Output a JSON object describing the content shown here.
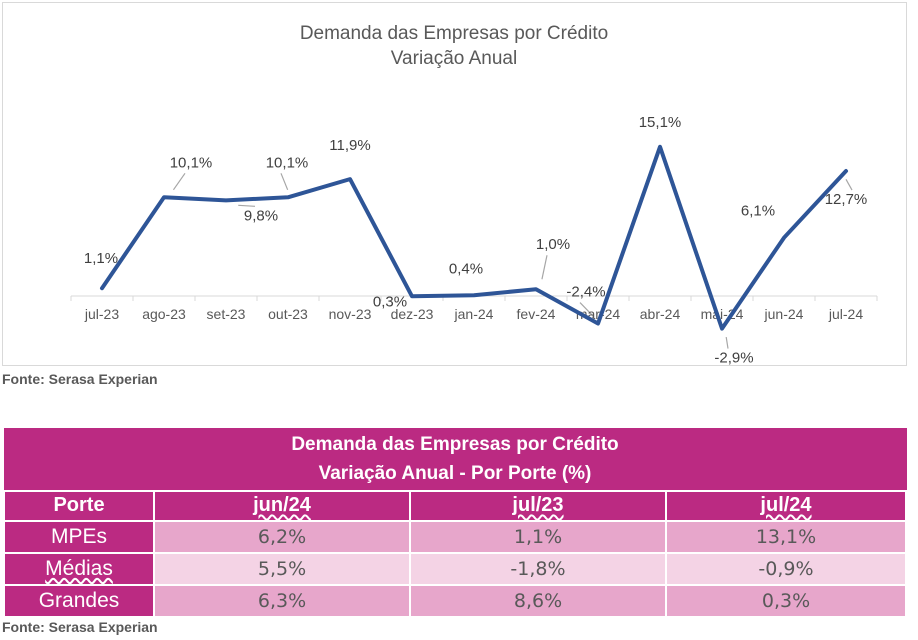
{
  "chart_data": {
    "type": "line",
    "title": "Demanda das Empresas por Crédito",
    "subtitle": "Variação Anual",
    "categories": [
      "jul-23",
      "ago-23",
      "set-23",
      "out-23",
      "nov-23",
      "dez-23",
      "jan-24",
      "fev-24",
      "mar-24",
      "abr-24",
      "mai-24",
      "jun-24",
      "jul-24"
    ],
    "values": [
      1.1,
      10.1,
      9.8,
      10.1,
      11.9,
      0.3,
      0.4,
      1.0,
      -2.4,
      15.1,
      -2.9,
      6.1,
      12.7
    ],
    "labels": [
      "1,1%",
      "10,1%",
      "9,8%",
      "10,1%",
      "11,9%",
      "0,3%",
      "0,4%",
      "1,0%",
      "-2,4%",
      "15,1%",
      "-2,9%",
      "6,1%",
      "12,7%"
    ],
    "line_color": "#2e5597",
    "grid": false
  },
  "chart_source": "Fonte: Serasa Experian",
  "table": {
    "title_line1": "Demanda das Empresas por Crédito",
    "title_line2": "Variação Anual - Por Porte (%)",
    "headers": [
      "Porte",
      "jun/24",
      "jul/23",
      "jul/24"
    ],
    "rows": [
      {
        "label": "MPEs",
        "values": [
          "6,2%",
          "1,1%",
          "13,1%"
        ]
      },
      {
        "label": "Médias",
        "values": [
          "5,5%",
          "-1,8%",
          "-0,9%"
        ]
      },
      {
        "label": "Grandes",
        "values": [
          "6,3%",
          "8,6%",
          "0,3%"
        ]
      }
    ],
    "header_color": "#bb2a82"
  },
  "table_source": "Fonte: Serasa Experian"
}
